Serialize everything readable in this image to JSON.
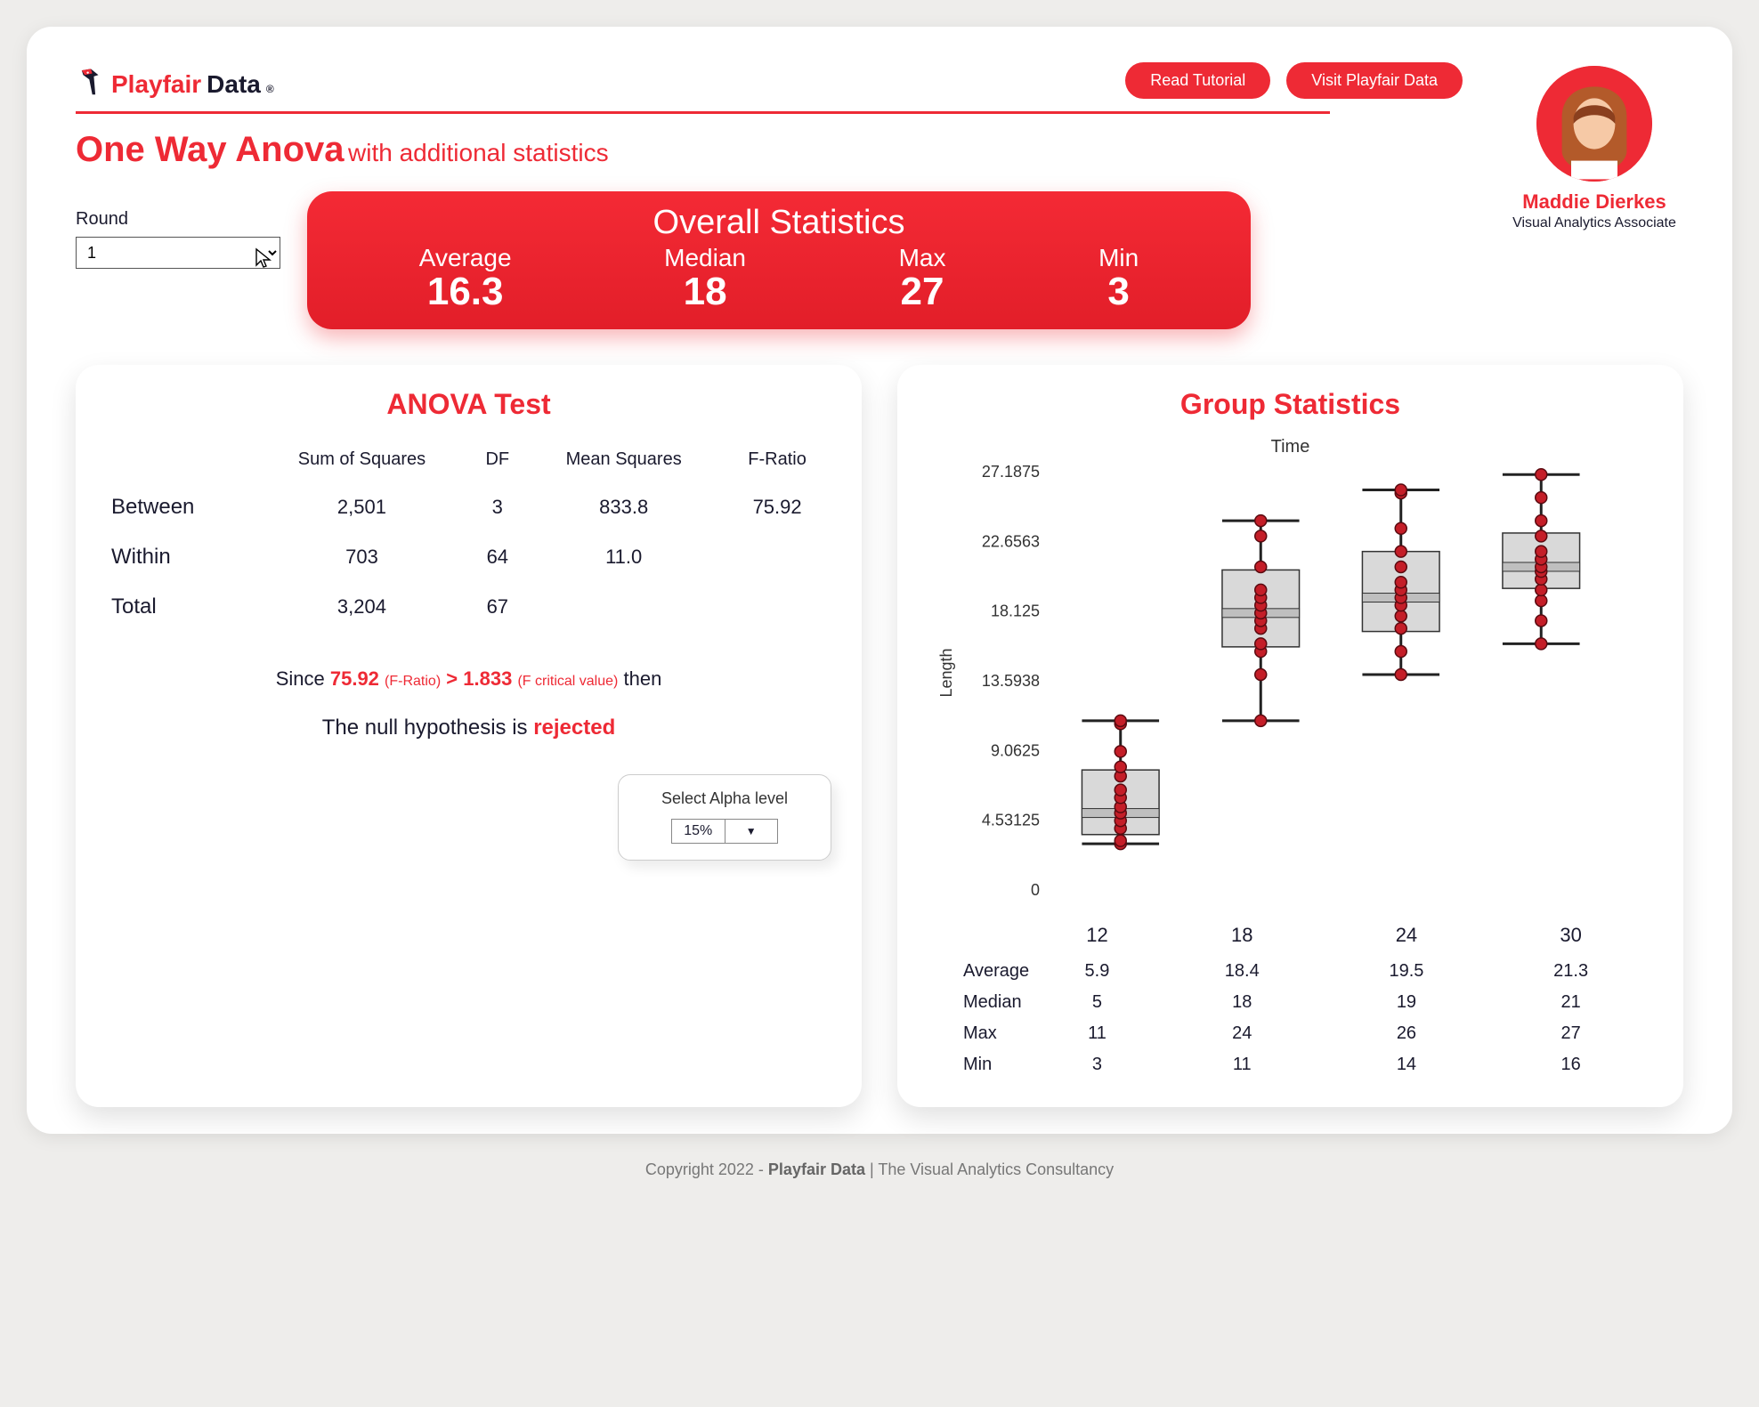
{
  "brand": {
    "part1": "Playfair",
    "part2": "Data",
    "reg": "®"
  },
  "buttons": {
    "read": "Read Tutorial",
    "visit": "Visit Playfair Data"
  },
  "title": {
    "main": "One Way Anova",
    "sub": "with additional statistics"
  },
  "profile": {
    "name": "Maddie Dierkes",
    "role": "Visual Analytics Associate"
  },
  "round": {
    "label": "Round",
    "value": "1"
  },
  "overall": {
    "title": "Overall Statistics",
    "items": [
      {
        "label": "Average",
        "value": "16.3"
      },
      {
        "label": "Median",
        "value": "18"
      },
      {
        "label": "Max",
        "value": "27"
      },
      {
        "label": "Min",
        "value": "3"
      }
    ],
    "bg_from": "#f42a35",
    "bg_to": "#e21e29"
  },
  "anova": {
    "title": "ANOVA Test",
    "cols": [
      "Sum of Squares",
      "DF",
      "Mean Squares",
      "F-Ratio"
    ],
    "rows": [
      {
        "name": "Between",
        "ss": "2,501",
        "df": "3",
        "ms": "833.8",
        "f": "75.92"
      },
      {
        "name": "Within",
        "ss": "703",
        "df": "64",
        "ms": "11.0",
        "f": ""
      },
      {
        "name": "Total",
        "ss": "3,204",
        "df": "67",
        "ms": "",
        "f": ""
      }
    ],
    "conclusion": {
      "since": "Since",
      "fval": "75.92",
      "flab": "(F-Ratio)",
      "gt": ">",
      "crit": "1.833",
      "critlab": "(F critical value)",
      "then": "then",
      "line2a": "The null hypothesis is",
      "line2b": "rejected"
    },
    "alpha": {
      "label": "Select Alpha level",
      "value": "15%"
    }
  },
  "group": {
    "title": "Group Statistics",
    "chart": {
      "type": "boxplot",
      "xlabel": "Time",
      "ylabel": "Length",
      "categories": [
        "12",
        "18",
        "24",
        "30"
      ],
      "ylim": [
        0,
        27.1875
      ],
      "yticks": [
        "0",
        "4.53125",
        "9.0625",
        "13.5938",
        "18.125",
        "22.6563",
        "27.1875"
      ],
      "box_fill": "#d9d9d9",
      "box_stroke": "#333333",
      "median_fill": "#bfbfbf",
      "whisker_color": "#222222",
      "point_fill": "#c41e28",
      "point_stroke": "#5a0a10",
      "point_radius": 6.5,
      "background": "#ffffff",
      "groups": [
        {
          "min": 3,
          "q1": 3.6,
          "median": 5,
          "q3": 7.8,
          "max": 11,
          "points": [
            3,
            3.2,
            4,
            4.5,
            5,
            5.4,
            6,
            6.5,
            7.4,
            8,
            9,
            10.8,
            11
          ]
        },
        {
          "min": 11,
          "q1": 15.8,
          "median": 18,
          "q3": 20.8,
          "max": 24,
          "points": [
            11,
            14,
            15.5,
            16,
            17,
            17.5,
            18,
            18.5,
            19,
            19.5,
            21,
            23,
            24
          ]
        },
        {
          "min": 14,
          "q1": 16.8,
          "median": 19,
          "q3": 22.0,
          "max": 26,
          "points": [
            14,
            15.5,
            17,
            17.8,
            18.5,
            19,
            19.5,
            20,
            21,
            22,
            23.5,
            25.8,
            26
          ]
        },
        {
          "min": 16,
          "q1": 19.6,
          "median": 21,
          "q3": 23.2,
          "max": 27,
          "points": [
            16,
            17.5,
            18.8,
            19.5,
            20.2,
            20.7,
            21,
            21.5,
            22,
            23,
            24,
            25.5,
            27
          ]
        }
      ]
    },
    "summary": {
      "labels": [
        "Average",
        "Median",
        "Max",
        "Min"
      ],
      "cols": {
        "12": [
          "5.9",
          "5",
          "11",
          "3"
        ],
        "18": [
          "18.4",
          "18",
          "24",
          "11"
        ],
        "24": [
          "19.5",
          "19",
          "26",
          "14"
        ],
        "30": [
          "21.3",
          "21",
          "27",
          "16"
        ]
      }
    }
  },
  "footer": {
    "a": "Copyright 2022 - ",
    "b": "Playfair Data",
    "c": " | The Visual Analytics Consultancy"
  },
  "colors": {
    "accent": "#ee2a35",
    "ink": "#1a1a2e"
  }
}
